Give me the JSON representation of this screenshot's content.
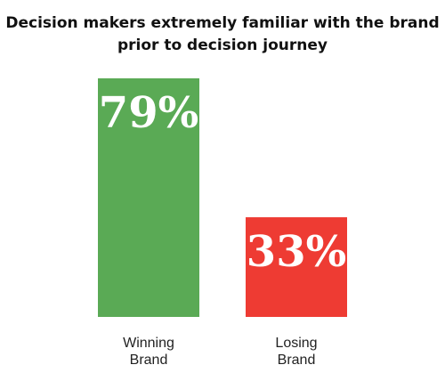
{
  "chart_data": {
    "type": "bar",
    "title_lines": [
      "Decision makers extremely familiar with the brand",
      "prior to decision journey"
    ],
    "categories": [
      [
        "Winning",
        "Brand"
      ],
      [
        "Losing",
        "Brand"
      ]
    ],
    "values": [
      79,
      33
    ],
    "value_labels": [
      "79%",
      "33%"
    ],
    "colors": [
      "#5aaa55",
      "#ee3b33"
    ],
    "xlabel": "",
    "ylabel": "",
    "ylim": [
      0,
      79
    ],
    "grid": false,
    "legend": "none"
  }
}
